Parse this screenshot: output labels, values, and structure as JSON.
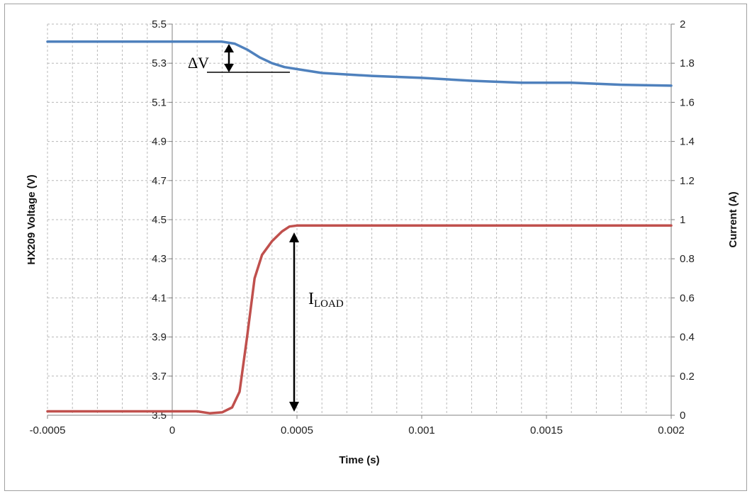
{
  "chart_data": {
    "type": "line",
    "xlabel": "Time (s)",
    "ylabel_left": "HX209 Voltage (V)",
    "ylabel_right": "Current (A)",
    "xlim": [
      -0.0005,
      0.002
    ],
    "ylim_left": [
      3.5,
      5.5
    ],
    "ylim_right": [
      0,
      2
    ],
    "grid": true,
    "x_ticks": [
      "-0.0005",
      "0",
      "0.0005",
      "0.001",
      "0.0015",
      "0.002"
    ],
    "y_left_ticks": [
      "3.5",
      "3.7",
      "3.9",
      "4.1",
      "4.3",
      "4.5",
      "4.7",
      "4.9",
      "5.1",
      "5.3",
      "5.5"
    ],
    "y_right_ticks": [
      "0",
      "0.2",
      "0.4",
      "0.6",
      "0.8",
      "1",
      "1.2",
      "1.4",
      "1.6",
      "1.8",
      "2"
    ],
    "series": [
      {
        "axis": "left",
        "color": "#4F81BD",
        "x": [
          -0.0005,
          0.0,
          0.0002,
          0.00025,
          0.0003,
          0.00035,
          0.0004,
          0.00045,
          0.0005,
          0.0006,
          0.0008,
          0.001,
          0.0012,
          0.0014,
          0.0016,
          0.0018,
          0.002
        ],
        "y": [
          5.41,
          5.41,
          5.41,
          5.4,
          5.37,
          5.33,
          5.3,
          5.28,
          5.27,
          5.25,
          5.235,
          5.225,
          5.21,
          5.2,
          5.2,
          5.19,
          5.185
        ]
      },
      {
        "axis": "right",
        "color": "#C0504D",
        "x": [
          -0.0005,
          0.0,
          0.0001,
          0.00015,
          0.0002,
          0.00024,
          0.00027,
          0.0003,
          0.00033,
          0.00036,
          0.0004,
          0.00044,
          0.00047,
          0.0005,
          0.0006,
          0.001,
          0.0015,
          0.002
        ],
        "y": [
          0.02,
          0.02,
          0.02,
          0.01,
          0.015,
          0.04,
          0.12,
          0.4,
          0.7,
          0.82,
          0.89,
          0.94,
          0.965,
          0.97,
          0.97,
          0.97,
          0.97,
          0.97
        ]
      }
    ],
    "annotations": {
      "delta_v": "ΔV",
      "i_load_main": "I",
      "i_load_sub": "LOAD"
    }
  }
}
